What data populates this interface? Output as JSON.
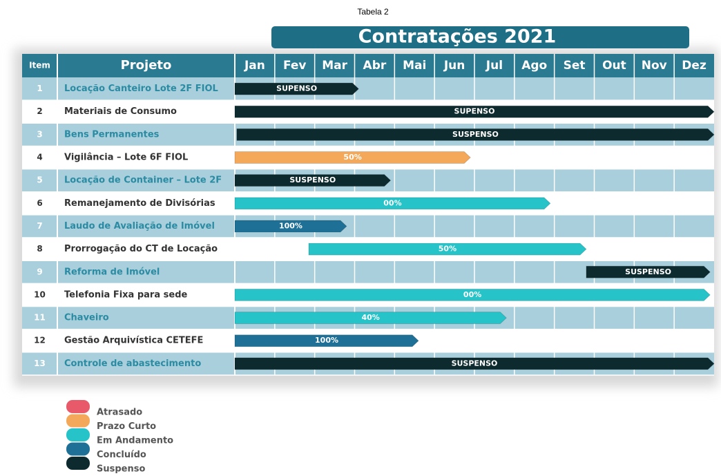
{
  "caption": "Tabela 2",
  "title": "Contratações 2021",
  "header": {
    "item": "Item",
    "project": "Projeto"
  },
  "months": [
    "Jan",
    "Fev",
    "Mar",
    "Abr",
    "Mai",
    "Jun",
    "Jul",
    "Ago",
    "Set",
    "Out",
    "Nov",
    "Dez"
  ],
  "rows": [
    {
      "item": "1",
      "project": "Locação Canteiro Lote 2F FIOL",
      "start": 0,
      "end": 3.1,
      "status": "Suspenso",
      "label": "SUPENSO"
    },
    {
      "item": "2",
      "project": "Materiais de Consumo",
      "start": 0,
      "end": 12,
      "status": "Suspenso",
      "label": "SUPENSO"
    },
    {
      "item": "3",
      "project": "Bens Permanentes",
      "start": 0.05,
      "end": 12,
      "status": "Suspenso",
      "label": "SUSPENSO"
    },
    {
      "item": "4",
      "project": "Vigilância – Lote 6F FIOL",
      "start": 0,
      "end": 5.9,
      "status": "Prazo Curto",
      "label": "50%"
    },
    {
      "item": "5",
      "project": "Locação de Container – Lote 2F",
      "start": 0,
      "end": 3.9,
      "status": "Suspenso",
      "label": "SUSPENSO"
    },
    {
      "item": "6",
      "project": "Remanejamento de Divisórias",
      "start": 0,
      "end": 7.9,
      "status": "Em Andamento",
      "label": "00%"
    },
    {
      "item": "7",
      "project": "Laudo de Avaliação de Imóvel",
      "start": 0,
      "end": 2.8,
      "status": "Concluído",
      "label": "100%"
    },
    {
      "item": "8",
      "project": "Prorrogação do CT de Locação",
      "start": 1.85,
      "end": 8.8,
      "status": "Em Andamento",
      "label": "50%"
    },
    {
      "item": "9",
      "project": "Reforma de Imóvel",
      "start": 8.8,
      "end": 11.9,
      "status": "Suspenso",
      "label": "SUSPENSO"
    },
    {
      "item": "10",
      "project": "Telefonia Fixa para sede",
      "start": 0,
      "end": 11.9,
      "status": "Em Andamento",
      "label": "00%"
    },
    {
      "item": "11",
      "project": "Chaveiro",
      "start": 0,
      "end": 6.8,
      "status": "Em Andamento",
      "label": "40%"
    },
    {
      "item": "12",
      "project": "Gestão Arquivística CETEFE",
      "start": 0,
      "end": 4.6,
      "status": "Concluído",
      "label": "100%"
    },
    {
      "item": "13",
      "project": "Controle de abastecimento",
      "start": 0,
      "end": 12,
      "status": "Suspenso",
      "label": "SUSPENSO"
    }
  ],
  "legend": [
    {
      "label": "Atrasado",
      "color": "#e85a6a"
    },
    {
      "label": "Prazo Curto",
      "color": "#f4a95a"
    },
    {
      "label": "Em Andamento",
      "color": "#26c3c9"
    },
    {
      "label": "Concluído",
      "color": "#1f7096"
    },
    {
      "label": "Suspenso",
      "color": "#0d2b2f"
    }
  ]
}
